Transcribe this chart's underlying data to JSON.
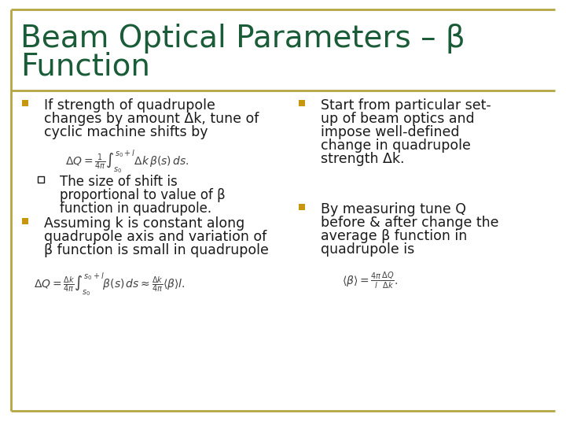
{
  "title_line1": "Beam Optical Parameters – β",
  "title_line2": "Function",
  "title_color": "#1a5c38",
  "title_fontsize": 28,
  "border_color": "#b5a642",
  "bg_color": "#ffffff",
  "bullet_color": "#c8960c",
  "text_color": "#1a1a1a",
  "bullet1_lines": [
    "If strength of quadrupole",
    "changes by amount Δk, tune of",
    "cyclic machine shifts by"
  ],
  "formula1": "$\\Delta Q = \\frac{1}{4\\pi} \\int_{s_0}^{s_0+l} \\Delta k\\, \\beta(s)\\, ds.$",
  "sub_bullet1_lines": [
    "The size of shift is",
    "proportional to value of β",
    "function in quadrupole."
  ],
  "bullet2_lines": [
    "Assuming k is constant along",
    "quadrupole axis and variation of",
    "β function is small in quadrupole"
  ],
  "formula2": "$\\Delta Q = \\frac{\\Delta k}{4\\pi} \\int_{s_0}^{s_0+l} \\beta(s)\\, ds \\approx \\frac{\\Delta k}{4\\pi} \\langle\\beta\\rangle l.$",
  "rbullet1_lines": [
    "Start from particular set-",
    "up of beam optics and",
    "impose well-defined",
    "change in quadrupole",
    "strength Δk."
  ],
  "rbullet2_lines": [
    "By measuring tune Q",
    "before & after change the",
    "average β function in",
    "quadrupole is"
  ],
  "rformula": "$\\langle\\beta\\rangle = \\frac{4\\pi}{l} \\frac{\\Delta Q}{\\Delta k}.$",
  "formula_color": "#404040",
  "formula_fontsize": 10,
  "body_fontsize": 12.5,
  "sub_fontsize": 12
}
